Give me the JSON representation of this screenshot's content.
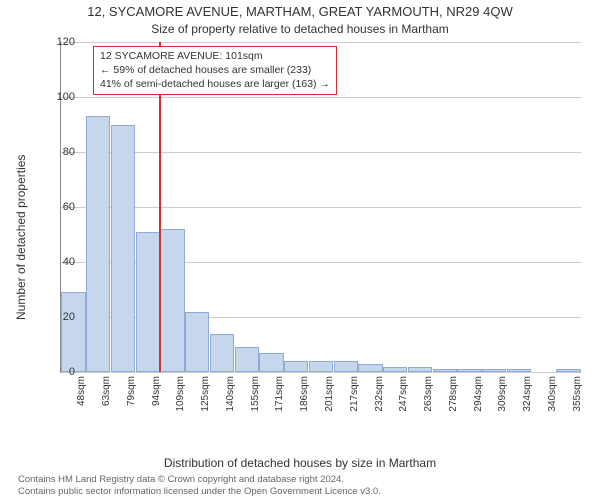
{
  "title": "12, SYCAMORE AVENUE, MARTHAM, GREAT YARMOUTH, NR29 4QW",
  "subtitle": "Size of property relative to detached houses in Martham",
  "ylabel": "Number of detached properties",
  "xlabel": "Distribution of detached houses by size in Martham",
  "attribution_line1": "Contains HM Land Registry data © Crown copyright and database right 2024.",
  "attribution_line2": "Contains public sector information licensed under the Open Government Licence v3.0.",
  "chart": {
    "type": "histogram",
    "ylim": [
      0,
      120
    ],
    "ytick_step": 20,
    "background_color": "#ffffff",
    "grid_color": "#cccccc",
    "axis_color": "#888888",
    "bar_color": "#c5d6ed",
    "bar_border_color": "#8faad3",
    "bar_border_width": 1,
    "x_categories": [
      "48sqm",
      "63sqm",
      "79sqm",
      "94sqm",
      "109sqm",
      "125sqm",
      "140sqm",
      "155sqm",
      "171sqm",
      "186sqm",
      "201sqm",
      "217sqm",
      "232sqm",
      "247sqm",
      "263sqm",
      "278sqm",
      "294sqm",
      "309sqm",
      "324sqm",
      "340sqm",
      "355sqm"
    ],
    "values": [
      29,
      93,
      90,
      51,
      52,
      22,
      14,
      9,
      7,
      4,
      4,
      4,
      3,
      2,
      2,
      1,
      1,
      1,
      1,
      0,
      1
    ],
    "reference_line": {
      "value_sqm": 101,
      "color": "#cc3333",
      "width": 2
    },
    "xmin_sqm": 40.5,
    "xstep_sqm": 15.35
  },
  "annotation": {
    "line1": "12 SYCAMORE AVENUE: 101sqm",
    "line2": "← 59% of detached houses are smaller (233)",
    "line3": "41% of semi-detached houses are larger (163) →",
    "border_color": "#cc3333",
    "background": "#ffffff",
    "fontsize": 10.5
  }
}
